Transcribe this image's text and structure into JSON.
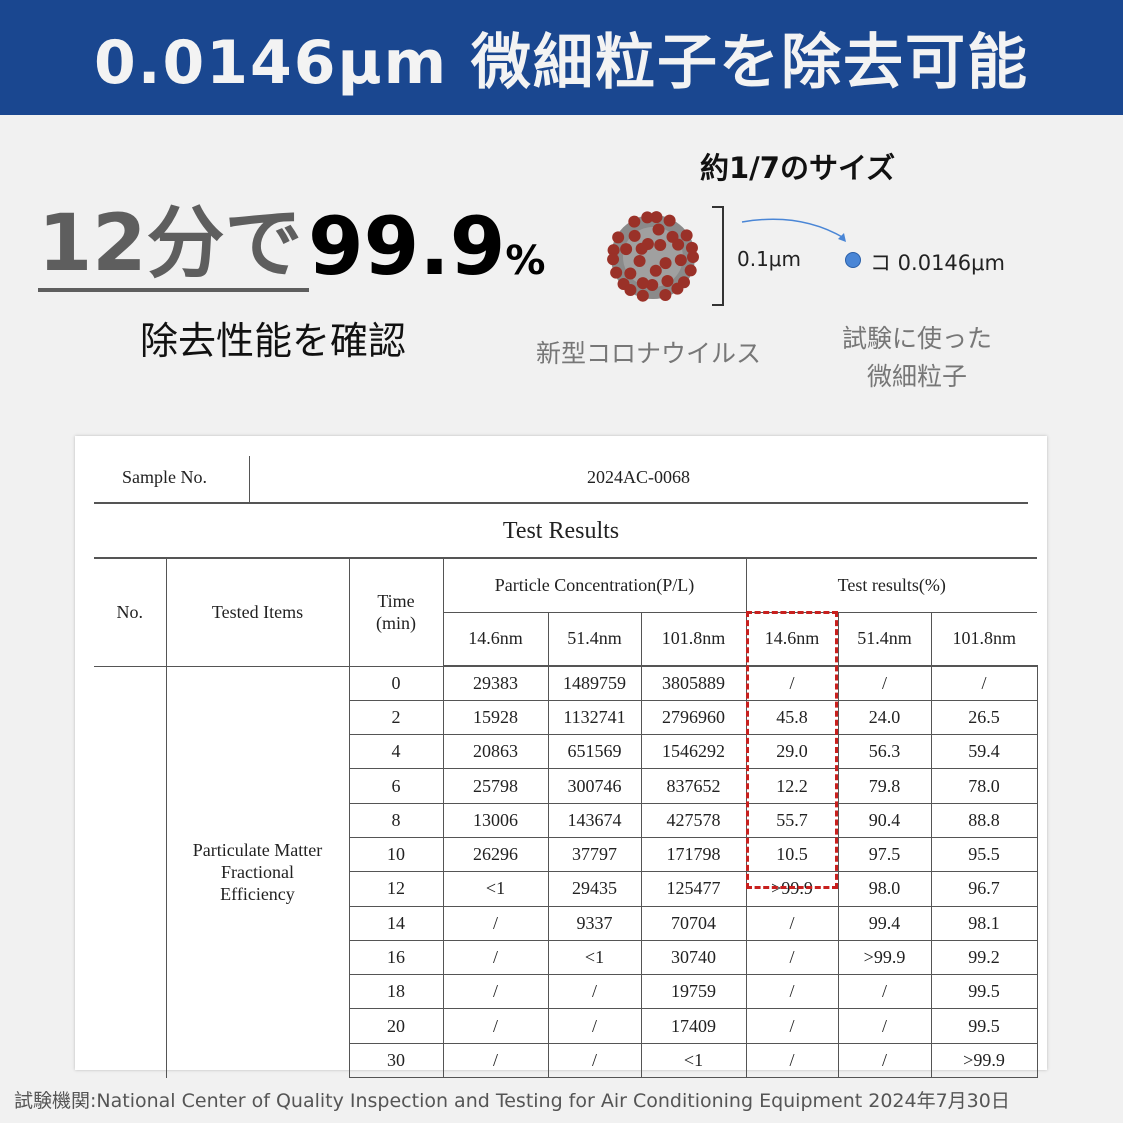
{
  "banner": {
    "title": "0.0146μm 微細粒子を除去可能",
    "bg_color": "#1a4790"
  },
  "headline": {
    "minutes": "12分で",
    "percent": "99.9",
    "percent_sign": "%",
    "subtitle": "除去性能を確認"
  },
  "comparison": {
    "ratio_label": "約1/7のサイズ",
    "virus_size": "0.1μm",
    "virus_label": "新型コロナウイルス",
    "particle_size": "コ 0.0146μm",
    "particle_label": "試験に使った微細粒子"
  },
  "report": {
    "sample_label": "Sample No.",
    "sample_value": "2024AC-0068",
    "title": "Test Results",
    "headers": {
      "no": "No.",
      "tested_items": "Tested Items",
      "time": "Time (min)",
      "concentration": "Particle Concentration(P/L)",
      "results": "Test results(%)",
      "sizes": [
        "14.6nm",
        "51.4nm",
        "101.8nm",
        "14.6nm",
        "51.4nm",
        "101.8nm"
      ]
    },
    "item": "Particulate Matter Fractional Efficiency",
    "rows": [
      [
        "0",
        "29383",
        "1489759",
        "3805889",
        "/",
        "/",
        "/"
      ],
      [
        "2",
        "15928",
        "1132741",
        "2796960",
        "45.8",
        "24.0",
        "26.5"
      ],
      [
        "4",
        "20863",
        "651569",
        "1546292",
        "29.0",
        "56.3",
        "59.4"
      ],
      [
        "6",
        "25798",
        "300746",
        "837652",
        "12.2",
        "79.8",
        "78.0"
      ],
      [
        "8",
        "13006",
        "143674",
        "427578",
        "55.7",
        "90.4",
        "88.8"
      ],
      [
        "10",
        "26296",
        "37797",
        "171798",
        "10.5",
        "97.5",
        "95.5"
      ],
      [
        "12",
        "<1",
        "29435",
        "125477",
        ">99.9",
        "98.0",
        "96.7"
      ],
      [
        "14",
        "/",
        "9337",
        "70704",
        "/",
        "99.4",
        "98.1"
      ],
      [
        "16",
        "/",
        "<1",
        "30740",
        "/",
        ">99.9",
        "99.2"
      ],
      [
        "18",
        "/",
        "/",
        "19759",
        "/",
        "/",
        "99.5"
      ],
      [
        "20",
        "/",
        "/",
        "17409",
        "/",
        "/",
        "99.5"
      ],
      [
        "30",
        "/",
        "/",
        "<1",
        "/",
        "/",
        ">99.9"
      ]
    ],
    "highlight_color": "#c8201e"
  },
  "footer": "試験機関:National Center of Quality Inspection and Testing for Air Conditioning Equipment  2024年7月30日"
}
